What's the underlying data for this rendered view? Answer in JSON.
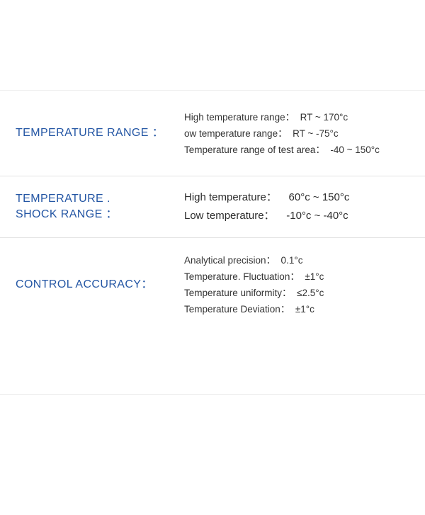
{
  "table": {
    "colors": {
      "label_blue": "#2456a4",
      "spec_text": "#333333",
      "divider": "#e3e3e3"
    },
    "rows": [
      {
        "label_lines": [
          "TEMPERATURE RANGE ："
        ],
        "specs": [
          "High temperature range：  RT ~ 170°c",
          "ow temperature range：  RT ~ -75°c",
          "Temperature range of test area：  -40 ~ 150°c"
        ]
      },
      {
        "label_lines": [
          "TEMPERATURE .",
          "SHOCK RANGE ："
        ],
        "specs": [
          "High temperature：    60°c ~ 150°c",
          "Low temperature：    -10°c ~ -40°c"
        ]
      },
      {
        "label_lines": [
          "CONTROL ACCURACY："
        ],
        "specs": [
          "Analytical precision：  0.1°c",
          "Temperature. Fluctuation：  ±1°c",
          "Temperature uniformity：  ≤2.5°c",
          "Temperature Deviation：  ±1°c"
        ]
      }
    ]
  }
}
